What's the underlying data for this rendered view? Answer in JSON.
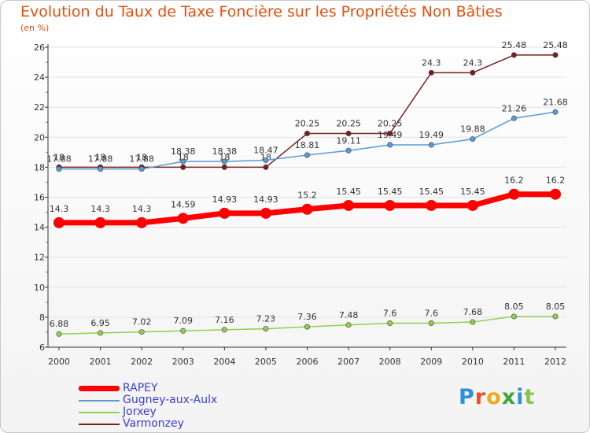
{
  "chart_data": {
    "type": "line",
    "title": "Evolution du Taux de Taxe Foncière sur les Propriétés Non Bâties",
    "ylabel": "(en %)",
    "xlabel": "",
    "ylim": [
      6,
      26
    ],
    "yticks": [
      "6",
      "8",
      "10",
      "12",
      "14",
      "16",
      "18",
      "20",
      "22",
      "24",
      "26"
    ],
    "categories": [
      "2000",
      "2001",
      "2002",
      "2003",
      "2004",
      "2005",
      "2006",
      "2007",
      "2008",
      "2009",
      "2010",
      "2011",
      "2012"
    ],
    "series": [
      {
        "name": "Varmonzey",
        "color": "#7a1f1f",
        "values": [
          18,
          18,
          18,
          18,
          18,
          18,
          20.25,
          20.25,
          20.25,
          24.3,
          24.3,
          25.48,
          25.48
        ],
        "labels": [
          "18",
          "18",
          "18",
          "18",
          "18",
          "18",
          "20.25",
          "20.25",
          "20.25",
          "24.3",
          "24.3",
          "25.48",
          "25.48"
        ]
      },
      {
        "name": "Gugney-aux-Aulx",
        "color": "#5b9bd5",
        "values": [
          17.88,
          17.88,
          17.88,
          18.38,
          18.38,
          18.47,
          18.81,
          19.11,
          19.49,
          19.49,
          19.88,
          21.26,
          21.68
        ],
        "labels": [
          "17.88",
          "17.88",
          "17.88",
          "18.38",
          "18.38",
          "18.47",
          "18.81",
          "19.11",
          "19.49",
          "19.49",
          "19.88",
          "21.26",
          "21.68"
        ]
      },
      {
        "name": "RAPEY",
        "color": "#ff0000",
        "values": [
          14.3,
          14.3,
          14.3,
          14.59,
          14.93,
          14.93,
          15.2,
          15.45,
          15.45,
          15.45,
          15.45,
          16.2,
          16.2
        ],
        "labels": [
          "14.3",
          "14.3",
          "14.3",
          "14.59",
          "14.93",
          "14.93",
          "15.2",
          "15.45",
          "15.45",
          "15.45",
          "15.45",
          "16.2",
          "16.2"
        ]
      },
      {
        "name": "Jorxey",
        "color": "#8fd14f",
        "values": [
          6.88,
          6.95,
          7.02,
          7.09,
          7.16,
          7.23,
          7.36,
          7.48,
          7.6,
          7.6,
          7.68,
          8.05,
          8.05
        ],
        "labels": [
          "6.88",
          "6.95",
          "7.02",
          "7.09",
          "7.16",
          "7.23",
          "7.36",
          "7.48",
          "7.6",
          "7.6",
          "7.68",
          "8.05",
          "8.05"
        ]
      }
    ],
    "legend": [
      "RAPEY",
      "Gugney-aux-Aulx",
      "Jorxey",
      "Varmonzey"
    ],
    "legend_position": "bottom-left"
  },
  "logo_text": "Proxiti"
}
